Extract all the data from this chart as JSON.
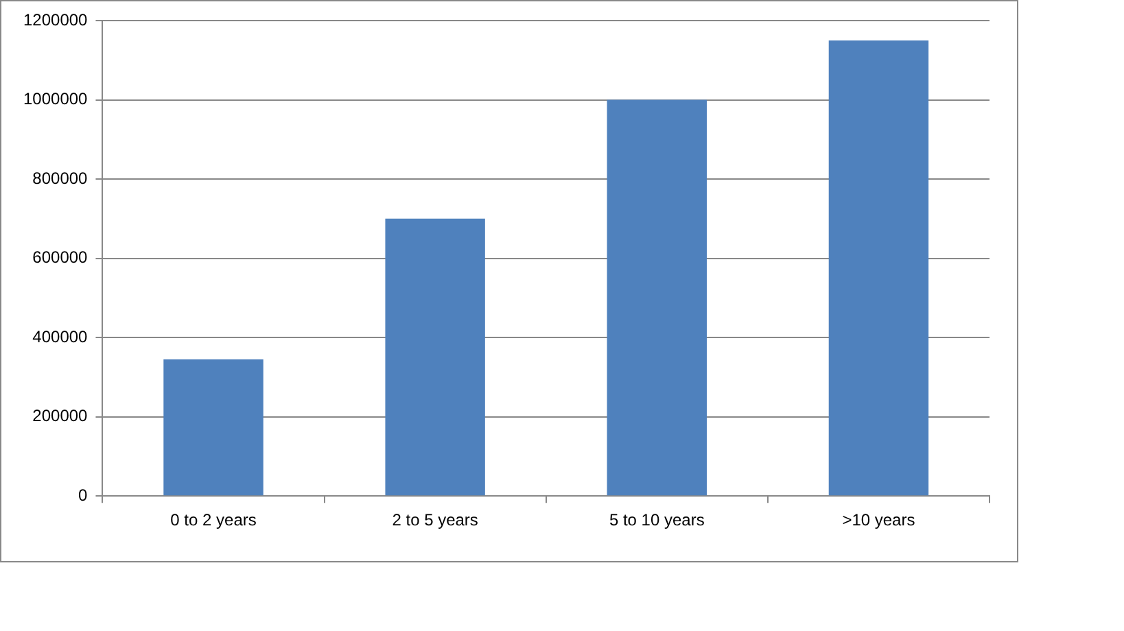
{
  "chart_data": {
    "type": "bar",
    "categories": [
      "0 to 2 years",
      "2 to 5 years",
      "5 to 10 years",
      ">10 years"
    ],
    "values": [
      345000,
      700000,
      1000000,
      1150000
    ],
    "color": "#4f81bd",
    "ylim": [
      0,
      1200000
    ],
    "yticks": [
      0,
      200000,
      400000,
      600000,
      800000,
      1000000,
      1200000
    ],
    "grid": "y",
    "legend": false
  }
}
